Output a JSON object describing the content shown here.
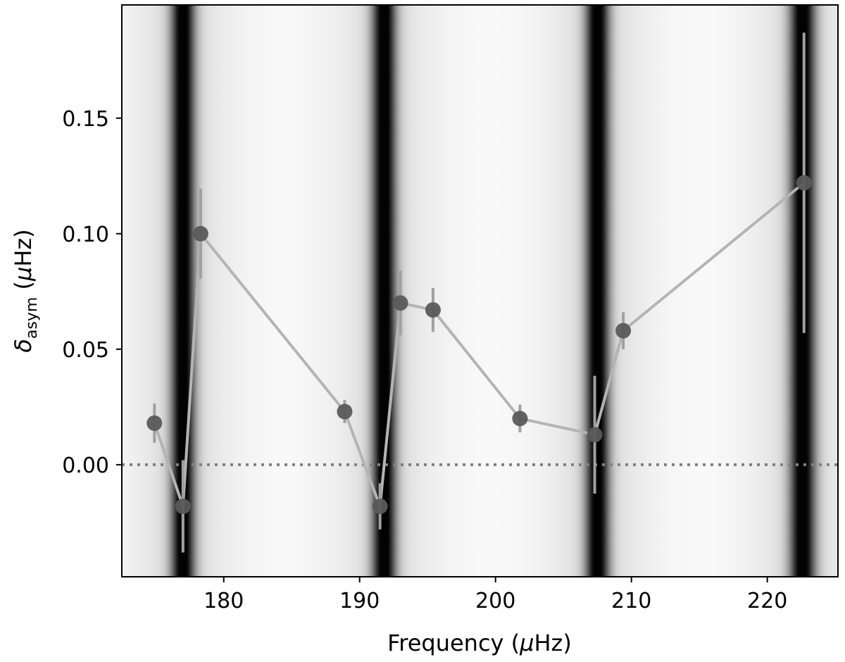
{
  "chart_data": {
    "type": "scatter",
    "title": "",
    "xlabel": {
      "prefix": "Frequency (",
      "greek": "μ",
      "unit": "Hz",
      "suffix": ")"
    },
    "ylabel": {
      "symbol": "δ",
      "subscript": "asym",
      "unit_open": " (",
      "greek": "μ",
      "unit": "Hz",
      "unit_close": ")"
    },
    "xlim": [
      172.5,
      225.2
    ],
    "ylim": [
      -0.0485,
      0.199
    ],
    "xticks": [
      180,
      190,
      200,
      210,
      220
    ],
    "xtick_labels": [
      "180",
      "190",
      "200",
      "210",
      "220"
    ],
    "yticks": [
      0.0,
      0.05,
      0.1,
      0.15
    ],
    "ytick_labels": [
      "0.00",
      "0.05",
      "0.10",
      "0.15"
    ],
    "grid": false,
    "reference_line": {
      "y": 0.0,
      "style": "dotted",
      "color": "#808080"
    },
    "background": {
      "kind": "grayscale-density",
      "dark_bands_x": [
        177.0,
        191.8,
        207.5,
        222.6
      ],
      "band_widths": [
        0.6,
        0.6,
        0.6,
        0.65
      ]
    },
    "series": [
      {
        "marker_color": "#5a5a5a",
        "line_color": "#b4b4b4",
        "error_color": "#a0a0a0",
        "points": [
          {
            "x": 174.9,
            "y": 0.018,
            "err": 0.0085
          },
          {
            "x": 177.0,
            "y": -0.018,
            "err": 0.02
          },
          {
            "x": 178.3,
            "y": 0.1,
            "err": 0.0195
          },
          {
            "x": 188.9,
            "y": 0.023,
            "err": 0.005
          },
          {
            "x": 191.5,
            "y": -0.018,
            "err": 0.01
          },
          {
            "x": 193.0,
            "y": 0.07,
            "err": 0.014
          },
          {
            "x": 195.4,
            "y": 0.067,
            "err": 0.0095
          },
          {
            "x": 201.8,
            "y": 0.02,
            "err": 0.006
          },
          {
            "x": 207.3,
            "y": 0.013,
            "err": 0.0255
          },
          {
            "x": 209.4,
            "y": 0.058,
            "err": 0.008
          },
          {
            "x": 222.7,
            "y": 0.122,
            "err": 0.065
          }
        ]
      }
    ]
  }
}
